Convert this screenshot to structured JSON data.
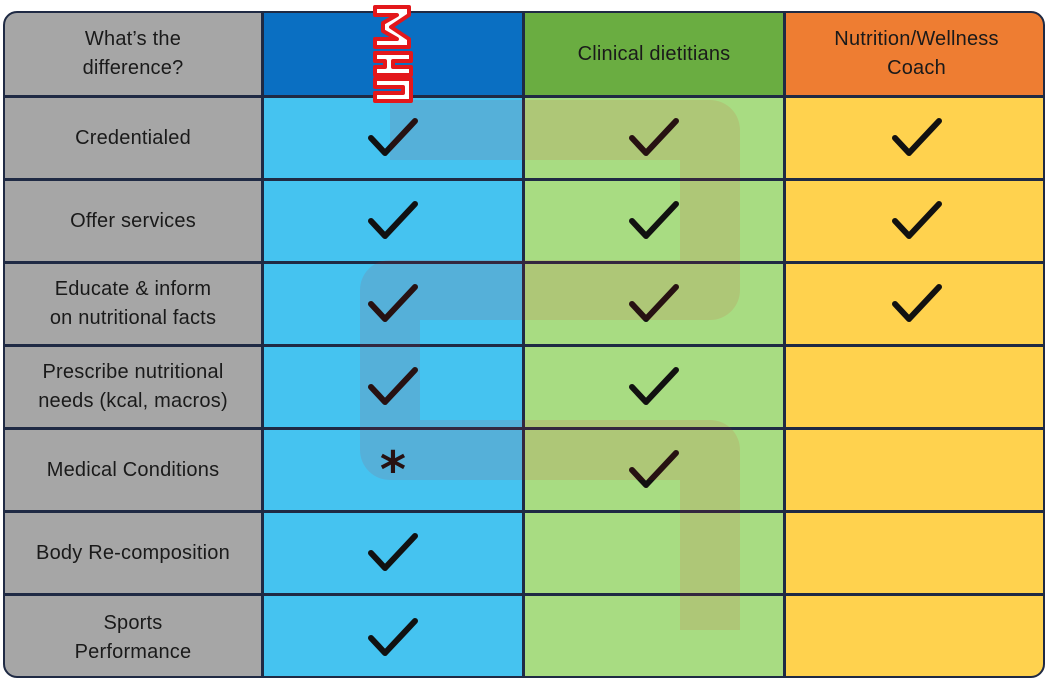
{
  "header": {
    "corner": "What’s the\ndifference?",
    "columns": [
      {
        "label": "",
        "logo": "brand-logo"
      },
      {
        "label": "Clinical dietitians"
      },
      {
        "label": "Nutrition/Wellness\nCoach"
      }
    ]
  },
  "rows": [
    {
      "label": "Credentialed",
      "marks": [
        "check",
        "check",
        "check"
      ]
    },
    {
      "label": "Offer services",
      "marks": [
        "check",
        "check",
        "check"
      ]
    },
    {
      "label": "Educate & inform\non nutritional facts",
      "marks": [
        "check",
        "check",
        "check"
      ]
    },
    {
      "label": "Prescribe nutritional\nneeds (kcal, macros)",
      "marks": [
        "check",
        "check",
        ""
      ]
    },
    {
      "label": "Medical Conditions",
      "marks": [
        "asterisk",
        "check",
        ""
      ]
    },
    {
      "label": "Body Re-composition",
      "marks": [
        "check",
        "",
        ""
      ]
    },
    {
      "label": "Sports\nPerformance",
      "marks": [
        "check",
        "",
        ""
      ]
    }
  ],
  "mark_symbols": {
    "asterisk": "*"
  },
  "colors": {
    "label_bg": "#a6a6a6",
    "col1_header": "#0a6fc2",
    "col1_body": "#45c3f0",
    "col2_header": "#6aad41",
    "col2_body": "#a8dc82",
    "col3_header": "#ee7d32",
    "col3_body": "#ffd24e",
    "logo": "#e3171b",
    "border": "#1f2a44"
  }
}
